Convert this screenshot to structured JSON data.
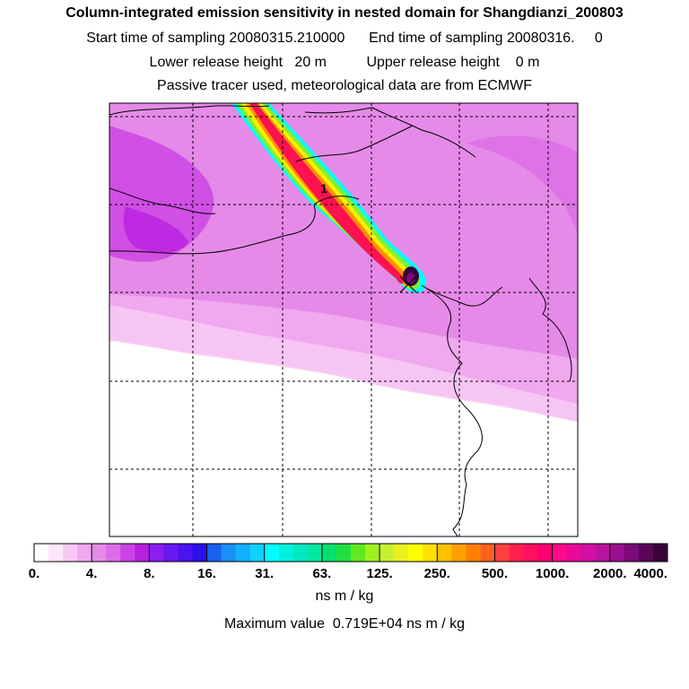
{
  "header": {
    "title": "Column-integrated emission sensitivity in nested domain for Shangdianzi_200803",
    "line2": "Start time of sampling 20080315.210000      End time of sampling 20080316.     0",
    "line3": "Lower release height   20 m          Upper release height    0 m",
    "line4": "Passive tracer used, meteorological data are from ECMWF"
  },
  "chart_data": {
    "type": "heatmap",
    "title": "Column-integrated emission sensitivity in nested domain for Shangdianzi_200803",
    "units": "ns m / kg",
    "max_value_label": "Maximum value  0.719E+04 ns m / kg",
    "plume_label": "1",
    "grid": true,
    "colorbar": {
      "tick_labels": [
        "0.",
        "4.",
        "8.",
        "16.",
        "31.",
        "63.",
        "125.",
        "250.",
        "500.",
        "1000.",
        "2000.",
        "4000."
      ],
      "colors": [
        "#ffffff",
        "#fde6fb",
        "#f7c8f3",
        "#f0a8ee",
        "#e58ae8",
        "#dc6ce6",
        "#cc44e4",
        "#b820e0",
        "#8a1ef0",
        "#6a18f0",
        "#4a12ee",
        "#2a10ea",
        "#1860f0",
        "#1890f8",
        "#10b0ff",
        "#10d0ff",
        "#00ffff",
        "#00f0e0",
        "#00e8c0",
        "#00e8a0",
        "#00e070",
        "#20e040",
        "#60e820",
        "#a0f020",
        "#c8f030",
        "#e8f020",
        "#ffff00",
        "#ffe000",
        "#ffc000",
        "#ffa000",
        "#ff8000",
        "#ff6020",
        "#ff4040",
        "#ff2050",
        "#ff1060",
        "#ff0070",
        "#ff0a8a",
        "#e80a9a",
        "#d010a0",
        "#b812a0",
        "#9a1090",
        "#7a0a78",
        "#5a0658",
        "#3a0238"
      ]
    }
  }
}
